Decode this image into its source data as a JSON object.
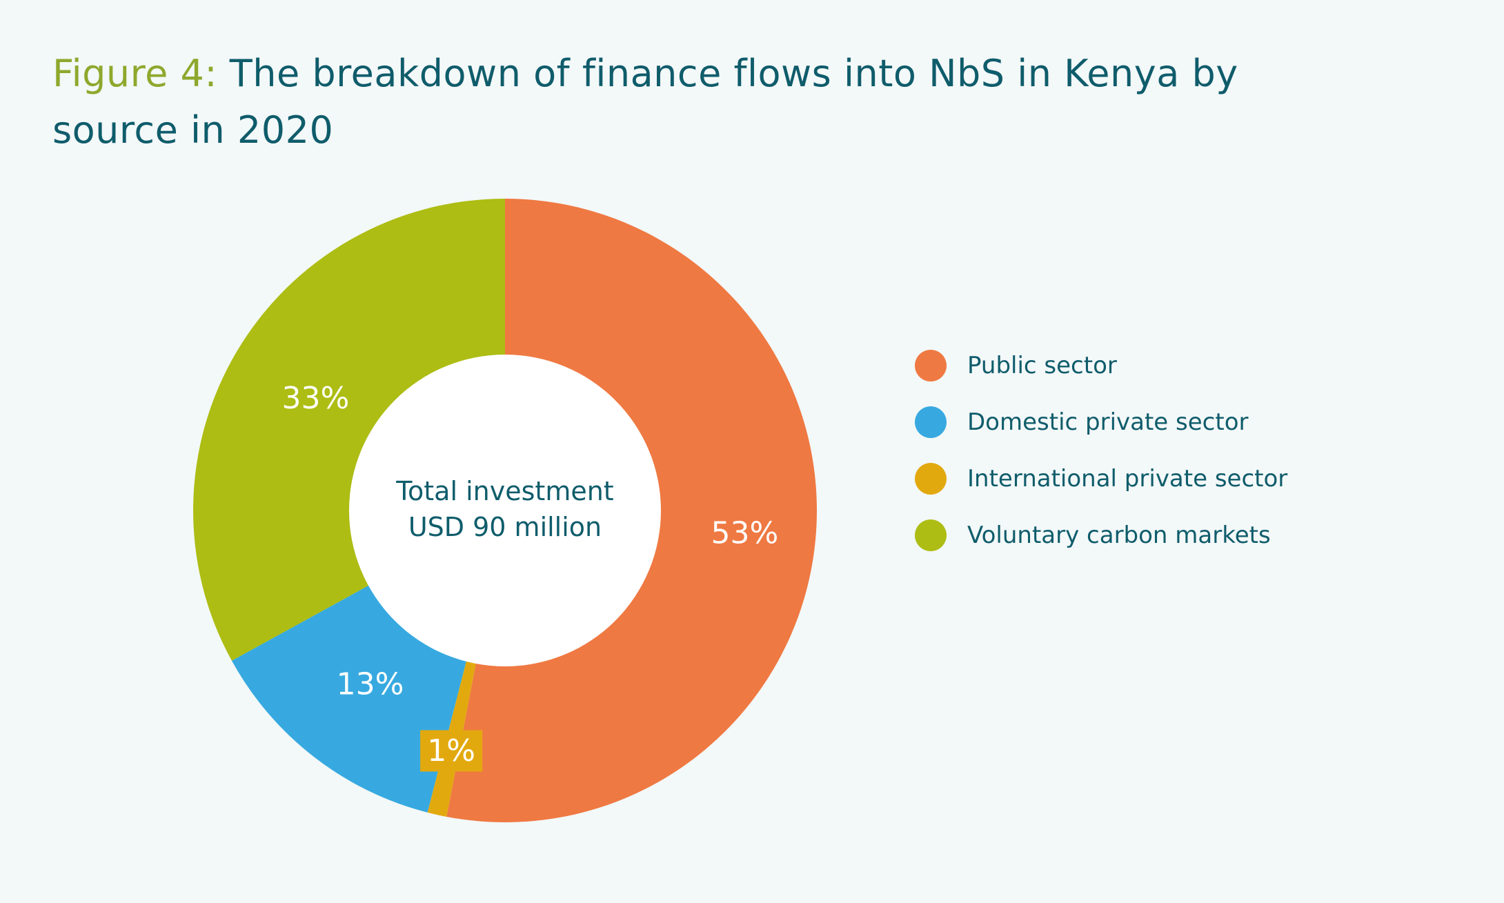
{
  "title": {
    "figure_label": "Figure 4:",
    "text": "The breakdown of finance flows into NbS in Kenya by source in 2020"
  },
  "chart_data": {
    "type": "pie",
    "title": "The breakdown of finance flows into NbS in Kenya by source in 2020",
    "center_label": [
      "Total investment",
      "USD 90 million"
    ],
    "legend_position": "right",
    "slices": [
      {
        "name": "Public sector",
        "value": 53,
        "label": "53%",
        "color": "#ef7942"
      },
      {
        "name": "International private sector",
        "value": 1,
        "label": "1%",
        "color": "#e2a90f"
      },
      {
        "name": "Domestic private sector",
        "value": 13,
        "label": "13%",
        "color": "#37a9e0"
      },
      {
        "name": "Voluntary carbon markets",
        "value": 33,
        "label": "33%",
        "color": "#adbd13"
      }
    ]
  },
  "legend": {
    "items": [
      {
        "label": "Public sector",
        "color": "#ef7942"
      },
      {
        "label": "Domestic private sector",
        "color": "#37a9e0"
      },
      {
        "label": "International private sector",
        "color": "#e2a90f"
      },
      {
        "label": "Voluntary carbon markets",
        "color": "#adbd13"
      }
    ]
  }
}
